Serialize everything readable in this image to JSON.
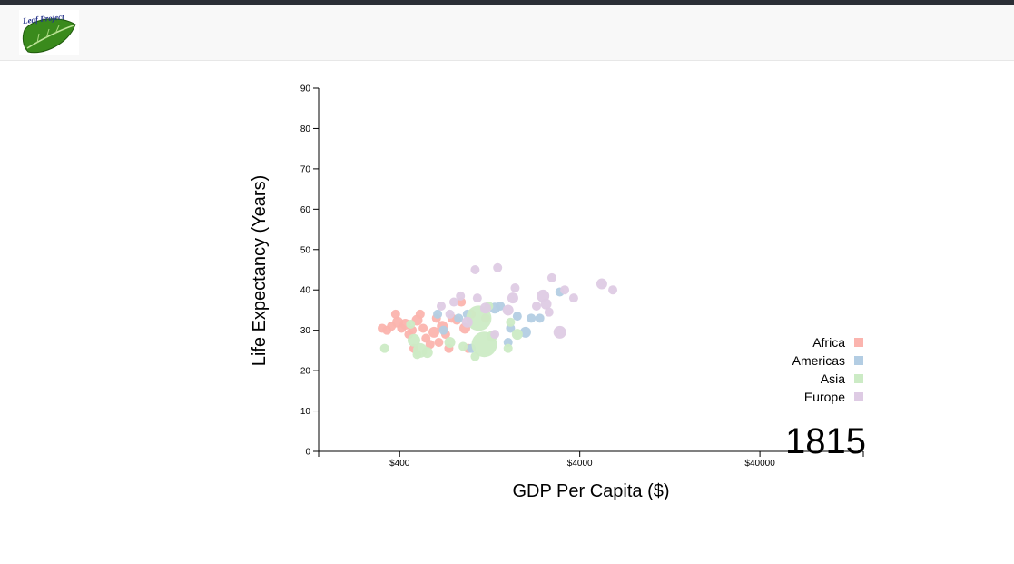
{
  "header": {
    "logo_text": "Leaf Project"
  },
  "colors": {
    "Africa": "#fbb4ae",
    "Americas": "#b3cde3",
    "Asia": "#ccebc5",
    "Europe": "#decbe4",
    "top_strip": "#2b2f36",
    "navbar_bg": "#f8f8f8"
  },
  "chart_data": {
    "type": "scatter",
    "xlabel": "GDP Per Capita ($)",
    "ylabel": "Life Expectancy (Years)",
    "x_scale": "log",
    "xlim": [
      142,
      150000
    ],
    "ylim": [
      0,
      90
    ],
    "x_ticks": [
      400,
      4000,
      40000
    ],
    "x_tick_labels": [
      "$400",
      "$4000",
      "$40000"
    ],
    "y_ticks": [
      0,
      10,
      20,
      30,
      40,
      50,
      60,
      70,
      80,
      90
    ],
    "year": "1815",
    "legend": [
      "Africa",
      "Americas",
      "Asia",
      "Europe"
    ],
    "legend_placement": "bottom-right",
    "points": [
      {
        "x": 320,
        "y": 30.5,
        "c": "Africa",
        "r": 5
      },
      {
        "x": 340,
        "y": 30.0,
        "c": "Africa",
        "r": 5
      },
      {
        "x": 360,
        "y": 31.0,
        "c": "Africa",
        "r": 5
      },
      {
        "x": 380,
        "y": 34.0,
        "c": "Africa",
        "r": 5
      },
      {
        "x": 390,
        "y": 32.0,
        "c": "Africa",
        "r": 6
      },
      {
        "x": 410,
        "y": 30.5,
        "c": "Africa",
        "r": 5
      },
      {
        "x": 430,
        "y": 31.5,
        "c": "Africa",
        "r": 6
      },
      {
        "x": 450,
        "y": 29.0,
        "c": "Africa",
        "r": 5
      },
      {
        "x": 470,
        "y": 30.0,
        "c": "Africa",
        "r": 5
      },
      {
        "x": 480,
        "y": 25.5,
        "c": "Africa",
        "r": 5
      },
      {
        "x": 500,
        "y": 32.5,
        "c": "Africa",
        "r": 6
      },
      {
        "x": 520,
        "y": 34.0,
        "c": "Africa",
        "r": 5
      },
      {
        "x": 540,
        "y": 30.5,
        "c": "Africa",
        "r": 5
      },
      {
        "x": 560,
        "y": 28.0,
        "c": "Africa",
        "r": 5
      },
      {
        "x": 590,
        "y": 26.5,
        "c": "Africa",
        "r": 5
      },
      {
        "x": 620,
        "y": 29.5,
        "c": "Africa",
        "r": 6
      },
      {
        "x": 640,
        "y": 33.0,
        "c": "Africa",
        "r": 5
      },
      {
        "x": 660,
        "y": 27.0,
        "c": "Africa",
        "r": 5
      },
      {
        "x": 690,
        "y": 31.0,
        "c": "Africa",
        "r": 6
      },
      {
        "x": 720,
        "y": 29.0,
        "c": "Africa",
        "r": 5
      },
      {
        "x": 750,
        "y": 25.5,
        "c": "Africa",
        "r": 5
      },
      {
        "x": 780,
        "y": 33.0,
        "c": "Africa",
        "r": 5
      },
      {
        "x": 830,
        "y": 32.5,
        "c": "Africa",
        "r": 5
      },
      {
        "x": 880,
        "y": 37.0,
        "c": "Africa",
        "r": 5
      },
      {
        "x": 920,
        "y": 30.5,
        "c": "Africa",
        "r": 6
      },
      {
        "x": 960,
        "y": 25.5,
        "c": "Africa",
        "r": 5
      },
      {
        "x": 1000,
        "y": 34.0,
        "c": "Africa",
        "r": 5
      },
      {
        "x": 1200,
        "y": 33.0,
        "c": "Africa",
        "r": 5
      },
      {
        "x": 650,
        "y": 34.0,
        "c": "Americas",
        "r": 5
      },
      {
        "x": 700,
        "y": 30.0,
        "c": "Americas",
        "r": 5
      },
      {
        "x": 850,
        "y": 33.0,
        "c": "Americas",
        "r": 5
      },
      {
        "x": 950,
        "y": 34.0,
        "c": "Americas",
        "r": 5
      },
      {
        "x": 1000,
        "y": 25.5,
        "c": "Americas",
        "r": 5
      },
      {
        "x": 1350,
        "y": 35.5,
        "c": "Americas",
        "r": 6
      },
      {
        "x": 1450,
        "y": 36.0,
        "c": "Americas",
        "r": 5
      },
      {
        "x": 1600,
        "y": 27.0,
        "c": "Americas",
        "r": 5
      },
      {
        "x": 1650,
        "y": 30.5,
        "c": "Americas",
        "r": 5
      },
      {
        "x": 1800,
        "y": 33.5,
        "c": "Americas",
        "r": 5
      },
      {
        "x": 2000,
        "y": 29.5,
        "c": "Americas",
        "r": 6
      },
      {
        "x": 2150,
        "y": 33.0,
        "c": "Americas",
        "r": 5
      },
      {
        "x": 2400,
        "y": 33.0,
        "c": "Americas",
        "r": 5
      },
      {
        "x": 3100,
        "y": 39.5,
        "c": "Americas",
        "r": 5
      },
      {
        "x": 330,
        "y": 25.5,
        "c": "Asia",
        "r": 5
      },
      {
        "x": 460,
        "y": 31.5,
        "c": "Asia",
        "r": 5
      },
      {
        "x": 480,
        "y": 27.5,
        "c": "Asia",
        "r": 7
      },
      {
        "x": 500,
        "y": 24.0,
        "c": "Asia",
        "r": 5
      },
      {
        "x": 520,
        "y": 25.0,
        "c": "Asia",
        "r": 8
      },
      {
        "x": 570,
        "y": 24.5,
        "c": "Asia",
        "r": 6
      },
      {
        "x": 760,
        "y": 27.0,
        "c": "Asia",
        "r": 6
      },
      {
        "x": 900,
        "y": 26.0,
        "c": "Asia",
        "r": 5
      },
      {
        "x": 1050,
        "y": 23.5,
        "c": "Asia",
        "r": 5
      },
      {
        "x": 1100,
        "y": 33.0,
        "c": "Asia",
        "r": 14
      },
      {
        "x": 1180,
        "y": 26.5,
        "c": "Asia",
        "r": 14
      },
      {
        "x": 1250,
        "y": 36.0,
        "c": "Asia",
        "r": 5
      },
      {
        "x": 1300,
        "y": 28.5,
        "c": "Asia",
        "r": 6
      },
      {
        "x": 1600,
        "y": 25.5,
        "c": "Asia",
        "r": 5
      },
      {
        "x": 1650,
        "y": 32.0,
        "c": "Asia",
        "r": 5
      },
      {
        "x": 1800,
        "y": 29.0,
        "c": "Asia",
        "r": 6
      },
      {
        "x": 680,
        "y": 36.0,
        "c": "Europe",
        "r": 5
      },
      {
        "x": 760,
        "y": 34.0,
        "c": "Europe",
        "r": 5
      },
      {
        "x": 800,
        "y": 37.0,
        "c": "Europe",
        "r": 5
      },
      {
        "x": 870,
        "y": 38.5,
        "c": "Europe",
        "r": 5
      },
      {
        "x": 950,
        "y": 32.0,
        "c": "Europe",
        "r": 6
      },
      {
        "x": 1050,
        "y": 45.0,
        "c": "Europe",
        "r": 5
      },
      {
        "x": 1080,
        "y": 38.0,
        "c": "Europe",
        "r": 5
      },
      {
        "x": 1200,
        "y": 35.5,
        "c": "Europe",
        "r": 6
      },
      {
        "x": 1350,
        "y": 29.0,
        "c": "Europe",
        "r": 5
      },
      {
        "x": 1400,
        "y": 45.5,
        "c": "Europe",
        "r": 5
      },
      {
        "x": 1600,
        "y": 35.0,
        "c": "Europe",
        "r": 6
      },
      {
        "x": 1700,
        "y": 38.0,
        "c": "Europe",
        "r": 6
      },
      {
        "x": 1750,
        "y": 40.5,
        "c": "Europe",
        "r": 5
      },
      {
        "x": 2300,
        "y": 36.0,
        "c": "Europe",
        "r": 5
      },
      {
        "x": 2500,
        "y": 38.5,
        "c": "Europe",
        "r": 7
      },
      {
        "x": 2600,
        "y": 36.5,
        "c": "Europe",
        "r": 6
      },
      {
        "x": 2700,
        "y": 34.5,
        "c": "Europe",
        "r": 5
      },
      {
        "x": 2800,
        "y": 43.0,
        "c": "Europe",
        "r": 5
      },
      {
        "x": 3100,
        "y": 29.5,
        "c": "Europe",
        "r": 7
      },
      {
        "x": 3300,
        "y": 40.0,
        "c": "Europe",
        "r": 5
      },
      {
        "x": 3700,
        "y": 38.0,
        "c": "Europe",
        "r": 5
      },
      {
        "x": 5300,
        "y": 41.5,
        "c": "Europe",
        "r": 6
      },
      {
        "x": 6100,
        "y": 40.0,
        "c": "Europe",
        "r": 5
      }
    ]
  }
}
